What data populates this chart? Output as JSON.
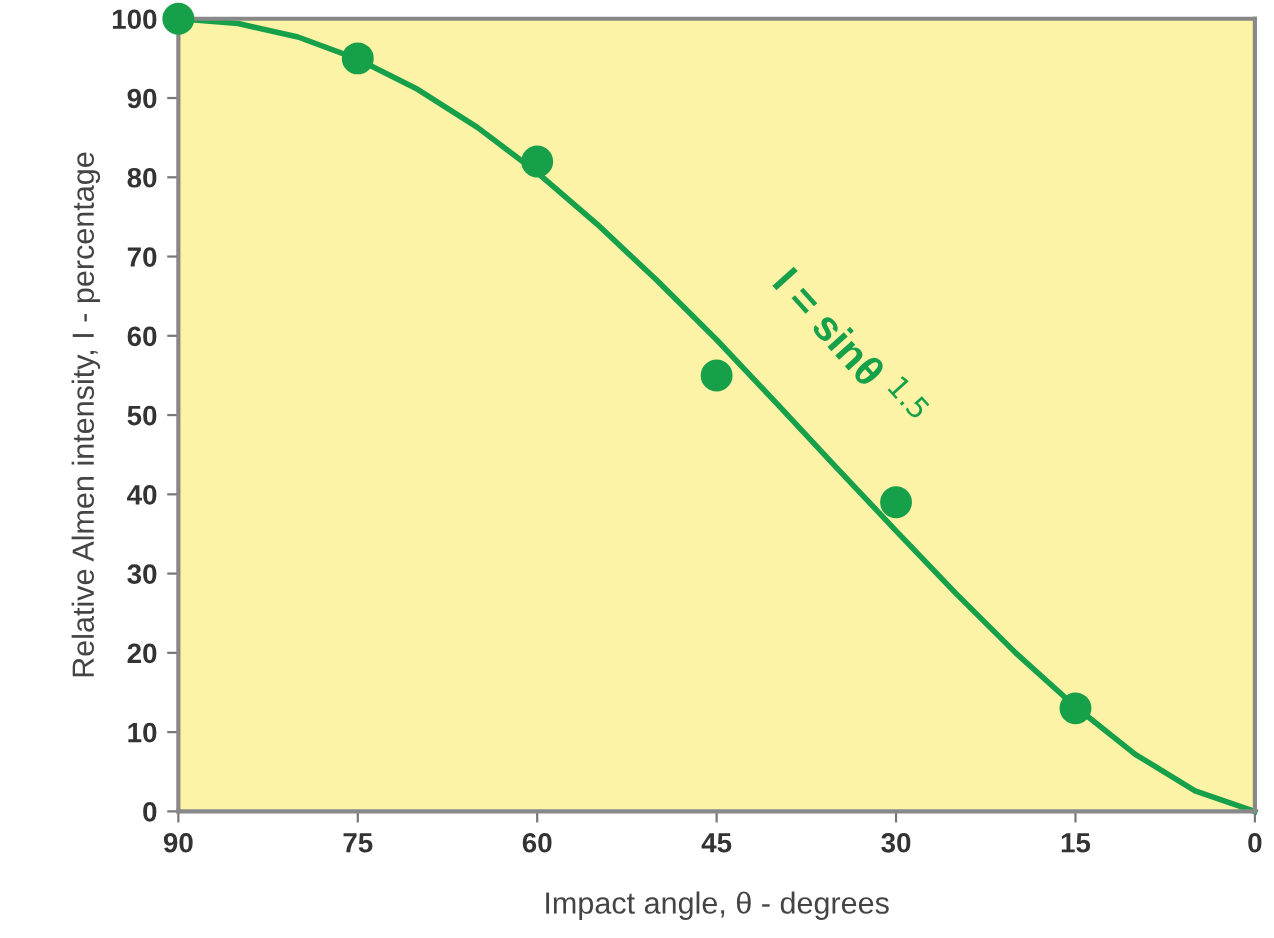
{
  "chart_data": {
    "type": "line",
    "xlabel": "Impact angle, θ - degrees",
    "ylabel": "Relative Almen intensity, I - percentage",
    "x": [
      90,
      75,
      60,
      45,
      30,
      15
    ],
    "series": [
      {
        "type": "scatter",
        "color": "#16a04a",
        "values": [
          100,
          95,
          82,
          55,
          39,
          13
        ],
        "marker": "circle"
      },
      {
        "color": "#16a04a",
        "x": [
          90,
          85,
          80,
          75,
          70,
          65,
          60,
          55,
          50,
          45,
          40,
          35,
          30,
          25,
          20,
          15,
          10,
          5,
          0
        ],
        "values": [
          100,
          99.4,
          97.7,
          94.9,
          91.1,
          86.3,
          80.6,
          74.1,
          67.0,
          59.5,
          51.5,
          43.4,
          35.4,
          27.5,
          20.0,
          13.2,
          7.2,
          2.6,
          0
        ],
        "marker": "none",
        "line_style": "solid"
      }
    ],
    "xlim": [
      90,
      0
    ],
    "ylim": [
      0,
      100
    ],
    "xticks": [
      90,
      75,
      60,
      45,
      30,
      15,
      0
    ],
    "yticks": [
      0,
      10,
      20,
      30,
      40,
      50,
      60,
      70,
      80,
      90,
      100
    ],
    "annotations": [
      "I = sinθ $^{1.5}$"
    ],
    "grid": false,
    "legend": false
  }
}
